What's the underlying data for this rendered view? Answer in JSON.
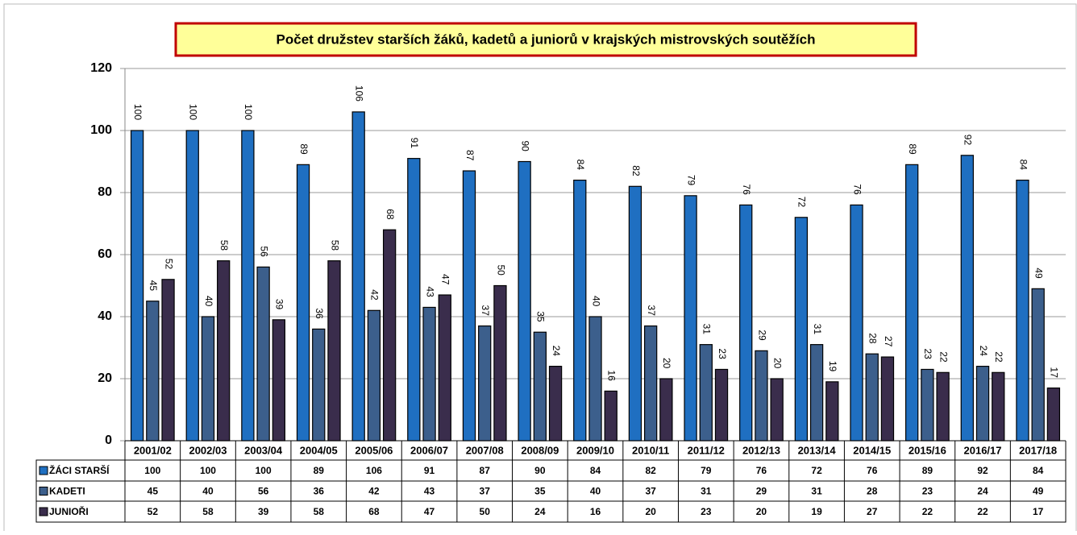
{
  "chart_data": {
    "type": "bar",
    "title": "Počet družstev starších žáků, kadetů a juniorů v krajských mistrovských soutěžích",
    "categories": [
      "2001/02",
      "2002/03",
      "2003/04",
      "2004/05",
      "2005/06",
      "2006/07",
      "2007/08",
      "2008/09",
      "2009/10",
      "2010/11",
      "2011/12",
      "2012/13",
      "2013/14",
      "2014/15",
      "2015/16",
      "2016/17",
      "2017/18"
    ],
    "series": [
      {
        "name": "ŽÁCI STARŠÍ",
        "color": "#1f6fc1",
        "values": [
          100,
          100,
          100,
          89,
          106,
          91,
          87,
          90,
          84,
          82,
          79,
          76,
          72,
          76,
          89,
          92,
          84
        ]
      },
      {
        "name": "KADETI",
        "color": "#3c5f8c",
        "values": [
          45,
          40,
          56,
          36,
          42,
          43,
          37,
          35,
          40,
          37,
          31,
          29,
          31,
          28,
          23,
          24,
          49
        ]
      },
      {
        "name": "JUNIOŘI",
        "color": "#3a2d4c",
        "values": [
          52,
          58,
          39,
          58,
          68,
          47,
          50,
          24,
          16,
          20,
          23,
          20,
          19,
          27,
          22,
          22,
          17
        ]
      }
    ],
    "ylim": [
      0,
      120
    ],
    "yticks": [
      0,
      20,
      40,
      60,
      80,
      100,
      120
    ],
    "grid": true
  }
}
